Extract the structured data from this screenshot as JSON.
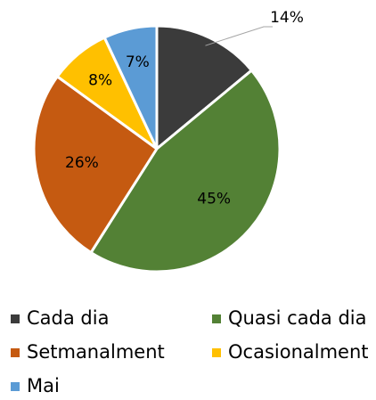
{
  "chart_data": {
    "type": "pie",
    "categories": [
      "Cada dia",
      "Quasi cada dia",
      "Setmanalment",
      "Ocasionalment",
      "Mai"
    ],
    "values": [
      14,
      45,
      26,
      8,
      7
    ],
    "value_labels": [
      "14%",
      "45%",
      "26%",
      "8%",
      "7%"
    ],
    "colors": [
      "#3b3b3b",
      "#538135",
      "#c55a11",
      "#ffc000",
      "#5b9bd5"
    ],
    "legend": "bottom"
  }
}
